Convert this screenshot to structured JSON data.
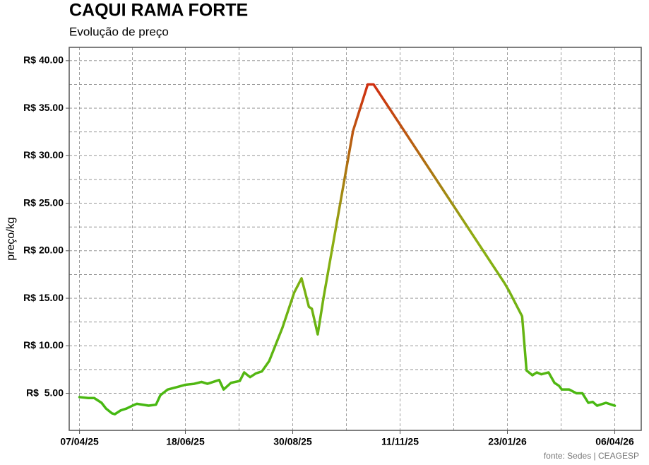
{
  "chart_data": {
    "type": "line",
    "title": "CAQUI RAMA FORTE",
    "subtitle": "Evolução de preço",
    "y_label": "preço/kg",
    "source": "fonte: Sedes | CEAGESP",
    "x": [
      "07/04/25",
      "13/04/25",
      "17/04/25",
      "22/04/25",
      "25/04/25",
      "29/04/25",
      "01/05/25",
      "05/05/25",
      "09/05/25",
      "13/05/25",
      "16/05/25",
      "24/05/25",
      "29/05/25",
      "01/06/25",
      "06/06/25",
      "11/06/25",
      "18/06/25",
      "24/06/25",
      "29/06/25",
      "03/07/25",
      "11/07/25",
      "14/07/25",
      "19/07/25",
      "25/07/25",
      "28/07/25",
      "01/08/25",
      "05/08/25",
      "09/08/25",
      "14/08/25",
      "23/08/25",
      "31/08/25",
      "05/09/25",
      "10/09/25",
      "12/09/25",
      "16/09/25",
      "20/09/25",
      "10/10/25",
      "20/10/25",
      "24/10/25",
      "21/01/26",
      "24/01/26",
      "02/02/26",
      "05/02/26",
      "09/02/26",
      "12/02/26",
      "15/02/26",
      "20/02/26",
      "24/02/26",
      "27/02/26",
      "01/03/26",
      "06/03/26",
      "11/03/26",
      "15/03/26",
      "19/03/26",
      "22/03/26",
      "25/03/26",
      "31/03/26",
      "06/04/26"
    ],
    "values": [
      4.6,
      4.5,
      4.5,
      4.0,
      3.4,
      2.9,
      2.8,
      3.2,
      3.4,
      3.7,
      3.9,
      3.7,
      3.8,
      4.8,
      5.4,
      5.6,
      5.9,
      6.0,
      6.2,
      6.0,
      6.4,
      5.4,
      6.1,
      6.3,
      7.2,
      6.7,
      7.1,
      7.3,
      8.4,
      11.9,
      15.6,
      17.1,
      14.1,
      13.9,
      11.2,
      15.1,
      32.6,
      37.5,
      37.5,
      16.6,
      15.8,
      13.1,
      7.4,
      6.9,
      7.2,
      7.0,
      7.2,
      6.1,
      5.8,
      5.4,
      5.4,
      5.0,
      5.0,
      4.0,
      4.1,
      3.7,
      4.0,
      3.7
    ],
    "colors": [
      "#3cba12",
      "#8fae12",
      "#e01010"
    ],
    "xlim": [
      "31/03/25",
      "24/04/26"
    ],
    "xticks": [
      "07/04/25",
      "18/06/25",
      "30/08/25",
      "11/11/25",
      "23/01/26",
      "06/04/26"
    ],
    "ylim": [
      1.1,
      41.4
    ],
    "yticks": [
      {
        "value": 5,
        "label": "R$  5.00"
      },
      {
        "value": 10,
        "label": "R$ 10.00"
      },
      {
        "value": 15,
        "label": "R$ 15.00"
      },
      {
        "value": 20,
        "label": "R$ 20.00"
      },
      {
        "value": 25,
        "label": "R$ 25.00"
      },
      {
        "value": 30,
        "label": "R$ 30.00"
      },
      {
        "value": 35,
        "label": "R$ 35.00"
      },
      {
        "value": 40,
        "label": "R$ 40.00"
      }
    ],
    "grid": true
  }
}
